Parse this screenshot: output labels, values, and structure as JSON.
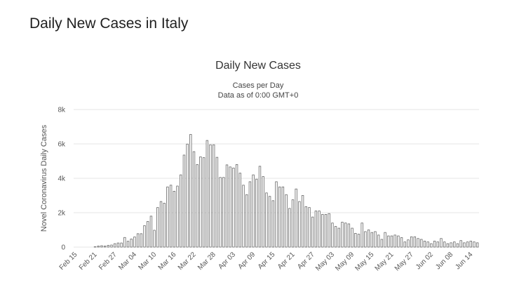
{
  "page": {
    "heading": "Daily New Cases in Italy"
  },
  "chart_data": {
    "type": "bar",
    "title": "Daily New Cases",
    "subtitle_lines": [
      "Cases per Day",
      "Data as of 0:00 GMT+0"
    ],
    "ylabel": "Novel Coronavirus Daily Cases",
    "xlabel": "",
    "ylim": [
      0,
      8000
    ],
    "yticks": [
      0,
      2000,
      4000,
      6000,
      8000
    ],
    "ytick_labels": [
      "0",
      "2k",
      "4k",
      "6k",
      "8k"
    ],
    "grid": true,
    "bar_color": "#666666",
    "categories": [
      "Feb 15",
      "Feb 16",
      "Feb 17",
      "Feb 18",
      "Feb 19",
      "Feb 20",
      "Feb 21",
      "Feb 22",
      "Feb 23",
      "Feb 24",
      "Feb 25",
      "Feb 26",
      "Feb 27",
      "Feb 28",
      "Feb 29",
      "Mar 01",
      "Mar 02",
      "Mar 03",
      "Mar 04",
      "Mar 05",
      "Mar 06",
      "Mar 07",
      "Mar 08",
      "Mar 09",
      "Mar 10",
      "Mar 11",
      "Mar 12",
      "Mar 13",
      "Mar 14",
      "Mar 15",
      "Mar 16",
      "Mar 17",
      "Mar 18",
      "Mar 19",
      "Mar 20",
      "Mar 21",
      "Mar 22",
      "Mar 23",
      "Mar 24",
      "Mar 25",
      "Mar 26",
      "Mar 27",
      "Mar 28",
      "Mar 29",
      "Mar 30",
      "Mar 31",
      "Apr 01",
      "Apr 02",
      "Apr 03",
      "Apr 04",
      "Apr 05",
      "Apr 06",
      "Apr 07",
      "Apr 08",
      "Apr 09",
      "Apr 10",
      "Apr 11",
      "Apr 12",
      "Apr 13",
      "Apr 14",
      "Apr 15",
      "Apr 16",
      "Apr 17",
      "Apr 18",
      "Apr 19",
      "Apr 20",
      "Apr 21",
      "Apr 22",
      "Apr 23",
      "Apr 24",
      "Apr 25",
      "Apr 26",
      "Apr 27",
      "Apr 28",
      "Apr 29",
      "Apr 30",
      "May 01",
      "May 02",
      "May 03",
      "May 04",
      "May 05",
      "May 06",
      "May 07",
      "May 08",
      "May 09",
      "May 10",
      "May 11",
      "May 12",
      "May 13",
      "May 14",
      "May 15",
      "May 16",
      "May 17",
      "May 18",
      "May 19",
      "May 20",
      "May 21",
      "May 22",
      "May 23",
      "May 24",
      "May 25",
      "May 26",
      "May 27",
      "May 28",
      "May 29",
      "May 30",
      "May 31",
      "Jun 01",
      "Jun 02",
      "Jun 03",
      "Jun 04",
      "Jun 05",
      "Jun 06",
      "Jun 07",
      "Jun 08",
      "Jun 09",
      "Jun 10",
      "Jun 11",
      "Jun 12",
      "Jun 13",
      "Jun 14",
      "Jun 15",
      "Jun 16"
    ],
    "xtick_labels": [
      "Feb 15",
      "Feb 21",
      "Feb 27",
      "Mar 04",
      "Mar 10",
      "Mar 16",
      "Mar 22",
      "Mar 28",
      "Apr 03",
      "Apr 09",
      "Apr 15",
      "Apr 21",
      "Apr 27",
      "May 03",
      "May 09",
      "May 15",
      "May 21",
      "May 27",
      "Jun 02",
      "Jun 08",
      "Jun 14"
    ],
    "series": [
      {
        "values": [
          0,
          0,
          0,
          0,
          0,
          0,
          20,
          60,
          80,
          60,
          100,
          120,
          200,
          240,
          240,
          560,
          340,
          470,
          590,
          780,
          780,
          1250,
          1490,
          1800,
          980,
          2300,
          2650,
          2550,
          3500,
          3600,
          3250,
          3550,
          4200,
          5350,
          5990,
          6550,
          5550,
          4800,
          5250,
          5200,
          6200,
          5950,
          5950,
          5220,
          4050,
          4050,
          4780,
          4660,
          4600,
          4800,
          4300,
          3600,
          3050,
          3800,
          4200,
          3950,
          4700,
          4100,
          3150,
          2950,
          2700,
          3800,
          3500,
          3500,
          3050,
          2250,
          2750,
          3380,
          2650,
          3000,
          2350,
          2300,
          1750,
          2100,
          2100,
          1900,
          1900,
          1950,
          1400,
          1200,
          1100,
          1450,
          1400,
          1350,
          1100,
          800,
          750,
          1400,
          900,
          1000,
          850,
          900,
          700,
          450,
          850,
          650,
          650,
          700,
          650,
          550,
          300,
          420,
          600,
          600,
          500,
          450,
          350,
          300,
          200,
          350,
          300,
          500,
          300,
          200,
          250,
          300,
          200,
          380,
          250,
          300,
          350,
          300,
          250
        ]
      }
    ]
  }
}
